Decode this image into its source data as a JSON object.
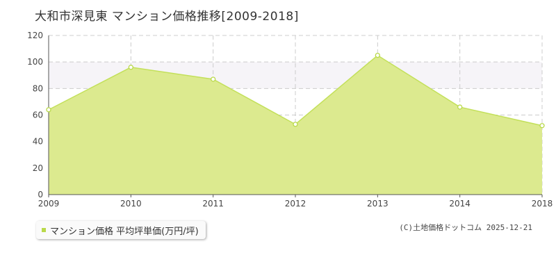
{
  "title": "大和市深見東 マンション価格推移[2009-2018]",
  "legend_label": "マンション価格 平均坪単価(万円/坪)",
  "footer": "(C)土地価格ドットコム 2025-12-21",
  "colors": {
    "fill": "#dcea8f",
    "line": "#c3e05a",
    "marker_stroke": "#b9d94a",
    "band": "#f6f4f8",
    "grid": "#cccccc",
    "axis": "#555555"
  },
  "chart_data": {
    "type": "area",
    "title": "大和市深見東 マンション価格推移[2009-2018]",
    "xlabel": "",
    "ylabel": "",
    "categories": [
      "2009",
      "2010",
      "2011",
      "2012",
      "2013",
      "2014",
      "2018"
    ],
    "series": [
      {
        "name": "マンション価格 平均坪単価(万円/坪)",
        "values": [
          64,
          96,
          87,
          53,
          105,
          66,
          52
        ]
      }
    ],
    "ylim": [
      0,
      120
    ],
    "yticks": [
      0,
      20,
      40,
      60,
      80,
      100,
      120
    ],
    "shaded_band": [
      80,
      100
    ],
    "grid": true,
    "legend_position": "bottom-left"
  }
}
